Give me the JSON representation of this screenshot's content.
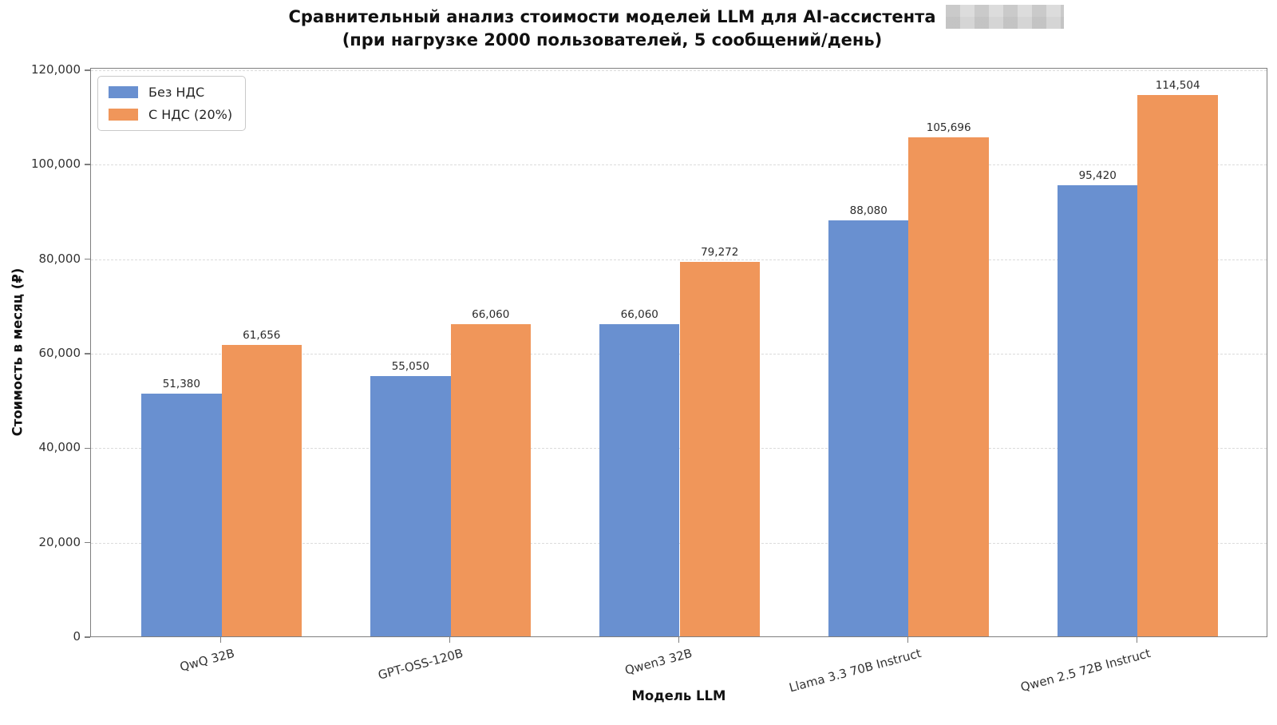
{
  "figure": {
    "title_line1": "Сравнительный анализ стоимости моделей LLM для AI-ассистента",
    "title_line2": "(при нагрузке 2000 пользователей, 5 сообщений/день)",
    "redaction_note": "pixelated redacted block after title line 1"
  },
  "chart_data": {
    "type": "bar",
    "title": "Сравнительный анализ стоимости моделей LLM для AI-ассистента (при нагрузке 2000 пользователей, 5 сообщений/день)",
    "categories": [
      "QwQ 32B",
      "GPT-OSS-120B",
      "Qwen3 32B",
      "Llama 3.3 70B Instruct",
      "Qwen 2.5 72B Instruct"
    ],
    "series": [
      {
        "name": "Без НДС",
        "color": "#6990d0",
        "values": [
          51380,
          55050,
          66060,
          88080,
          95420
        ]
      },
      {
        "name": "С НДС (20%)",
        "color": "#f0965a",
        "values": [
          61656,
          66060,
          79272,
          105696,
          114504
        ]
      }
    ],
    "bar_value_labels": {
      "bez_nds": [
        "51,380",
        "55,050",
        "66,060",
        "88,080",
        "95,420"
      ],
      "s_nds": [
        "61,656",
        "66,060",
        "79,272",
        "105,696",
        "114,504"
      ]
    },
    "xlabel": "Модель LLM",
    "ylabel": "Стоимость в месяц (₽)",
    "ylim": [
      0,
      120500
    ],
    "yticks": [
      0,
      20000,
      40000,
      60000,
      80000,
      100000,
      120000
    ],
    "ytick_labels": [
      "0",
      "20,000",
      "40,000",
      "60,000",
      "80,000",
      "100,000",
      "120,000"
    ],
    "grid": "horizontal-dashed",
    "legend_position": "upper-left"
  },
  "colors": {
    "bar_blue": "#6990d0",
    "bar_orange": "#f0965a",
    "gridline": "#dbdbdb",
    "spine": "#7f7f7f",
    "text": "#262626"
  }
}
